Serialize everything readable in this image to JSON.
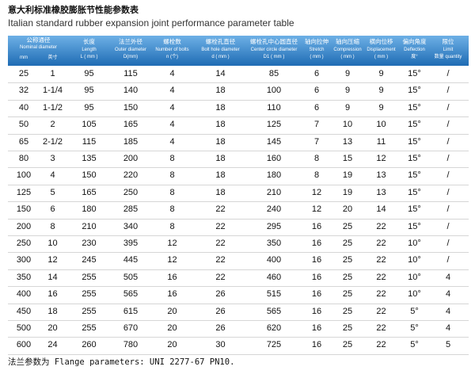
{
  "title": "意大利标准橡胶膨胀节性能参数表",
  "subtitle": "Italian standard rubber expansion joint performance parameter table",
  "header": {
    "group": {
      "zh": "公称通径",
      "en": "Nominal diameter",
      "sub": [
        "mm",
        "英寸"
      ]
    },
    "columns": [
      {
        "zh": "长度",
        "en": "Length",
        "unit": "L ( mm )"
      },
      {
        "zh": "法兰外径",
        "en": "Outer diameter",
        "unit": "D(mm)"
      },
      {
        "zh": "螺栓数",
        "en": "Number of bolts",
        "unit": "n (个)"
      },
      {
        "zh": "螺栓孔直径",
        "en": "Bolt hole diameter",
        "unit": "d ( mm )"
      },
      {
        "zh": "螺栓孔中心圆直径",
        "en": "Center circle diameter",
        "unit": "D1 ( mm )"
      },
      {
        "zh": "轴向拉伸",
        "en": "Stretch",
        "unit": "( mm )"
      },
      {
        "zh": "轴向压缩",
        "en": "Compression",
        "unit": "( mm )"
      },
      {
        "zh": "横向位移",
        "en": "Displacement",
        "unit": "( mm )"
      },
      {
        "zh": "偏向角度",
        "en": "Deflection",
        "unit": "度°"
      },
      {
        "zh": "限位",
        "en": "Limit",
        "unit": "数量 quantity"
      }
    ]
  },
  "table": {
    "rows": [
      [
        "25",
        "1",
        "95",
        "115",
        "4",
        "14",
        "85",
        "6",
        "9",
        "9",
        "15°",
        "/"
      ],
      [
        "32",
        "1-1/4",
        "95",
        "140",
        "4",
        "18",
        "100",
        "6",
        "9",
        "9",
        "15°",
        "/"
      ],
      [
        "40",
        "1-1/2",
        "95",
        "150",
        "4",
        "18",
        "110",
        "6",
        "9",
        "9",
        "15°",
        "/"
      ],
      [
        "50",
        "2",
        "105",
        "165",
        "4",
        "18",
        "125",
        "7",
        "10",
        "10",
        "15°",
        "/"
      ],
      [
        "65",
        "2-1/2",
        "115",
        "185",
        "4",
        "18",
        "145",
        "7",
        "13",
        "11",
        "15°",
        "/"
      ],
      [
        "80",
        "3",
        "135",
        "200",
        "8",
        "18",
        "160",
        "8",
        "15",
        "12",
        "15°",
        "/"
      ],
      [
        "100",
        "4",
        "150",
        "220",
        "8",
        "18",
        "180",
        "8",
        "19",
        "13",
        "15°",
        "/"
      ],
      [
        "125",
        "5",
        "165",
        "250",
        "8",
        "18",
        "210",
        "12",
        "19",
        "13",
        "15°",
        "/"
      ],
      [
        "150",
        "6",
        "180",
        "285",
        "8",
        "22",
        "240",
        "12",
        "20",
        "14",
        "15°",
        "/"
      ],
      [
        "200",
        "8",
        "210",
        "340",
        "8",
        "22",
        "295",
        "16",
        "25",
        "22",
        "15°",
        "/"
      ],
      [
        "250",
        "10",
        "230",
        "395",
        "12",
        "22",
        "350",
        "16",
        "25",
        "22",
        "10°",
        "/"
      ],
      [
        "300",
        "12",
        "245",
        "445",
        "12",
        "22",
        "400",
        "16",
        "25",
        "22",
        "10°",
        "/"
      ],
      [
        "350",
        "14",
        "255",
        "505",
        "16",
        "22",
        "460",
        "16",
        "25",
        "22",
        "10°",
        "4"
      ],
      [
        "400",
        "16",
        "255",
        "565",
        "16",
        "26",
        "515",
        "16",
        "25",
        "22",
        "10°",
        "4"
      ],
      [
        "450",
        "18",
        "255",
        "615",
        "20",
        "26",
        "565",
        "16",
        "25",
        "22",
        "5°",
        "4"
      ],
      [
        "500",
        "20",
        "255",
        "670",
        "20",
        "26",
        "620",
        "16",
        "25",
        "22",
        "5°",
        "4"
      ],
      [
        "600",
        "24",
        "260",
        "780",
        "20",
        "30",
        "725",
        "16",
        "25",
        "22",
        "5°",
        "5"
      ]
    ]
  },
  "footer": "法兰参数为 Flange parameters: UNI 2277-67 PN10."
}
